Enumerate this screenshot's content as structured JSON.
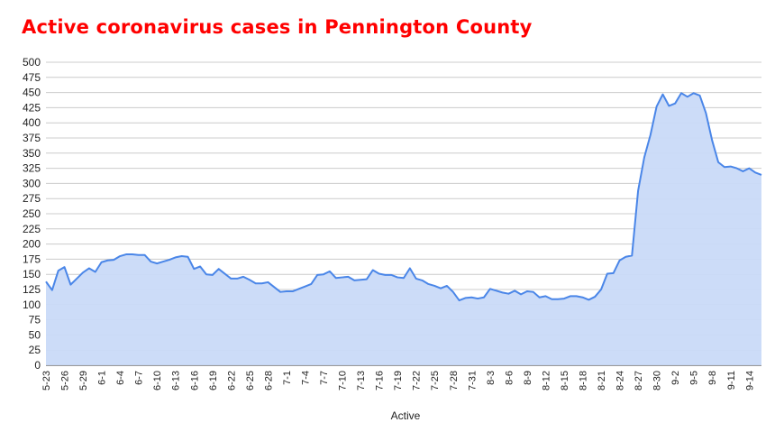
{
  "chart_data": {
    "type": "area",
    "title": "Active coronavirus cases in Pennington County",
    "xlabel": "Active",
    "ylabel": "",
    "ylim": [
      0,
      500
    ],
    "yticks": [
      0,
      25,
      50,
      75,
      100,
      125,
      150,
      175,
      200,
      225,
      250,
      275,
      300,
      325,
      350,
      375,
      400,
      425,
      450,
      475,
      500
    ],
    "grid": true,
    "legend": "none",
    "colors": {
      "title": "#ff0000",
      "line": "#4a86e8",
      "fill": "#c9daf8",
      "grid": "#cccccc"
    },
    "x": [
      "5-23",
      "5-24",
      "5-25",
      "5-26",
      "5-27",
      "5-28",
      "5-29",
      "5-30",
      "5-31",
      "6-1",
      "6-2",
      "6-3",
      "6-4",
      "6-5",
      "6-6",
      "6-7",
      "6-8",
      "6-9",
      "6-10",
      "6-11",
      "6-12",
      "6-13",
      "6-14",
      "6-15",
      "6-16",
      "6-17",
      "6-18",
      "6-19",
      "6-20",
      "6-21",
      "6-22",
      "6-23",
      "6-24",
      "6-25",
      "6-26",
      "6-27",
      "6-28",
      "6-29",
      "6-30",
      "7-1",
      "7-2",
      "7-3",
      "7-4",
      "7-5",
      "7-6",
      "7-7",
      "7-8",
      "7-9",
      "7-10",
      "7-11",
      "7-12",
      "7-13",
      "7-14",
      "7-15",
      "7-16",
      "7-17",
      "7-18",
      "7-19",
      "7-20",
      "7-21",
      "7-22",
      "7-23",
      "7-24",
      "7-25",
      "7-26",
      "7-27",
      "7-28",
      "7-29",
      "7-30",
      "7-31",
      "8-1",
      "8-2",
      "8-3",
      "8-4",
      "8-5",
      "8-6",
      "8-7",
      "8-8",
      "8-9",
      "8-10",
      "8-11",
      "8-12",
      "8-13",
      "8-14",
      "8-15",
      "8-16",
      "8-17",
      "8-18",
      "8-19",
      "8-20",
      "8-21",
      "8-22",
      "8-23",
      "8-24",
      "8-25",
      "8-26",
      "8-27",
      "8-28",
      "8-29",
      "8-30",
      "8-31",
      "9-1",
      "9-2",
      "9-3",
      "9-4",
      "9-5",
      "9-6",
      "9-7",
      "9-8",
      "9-9",
      "9-10",
      "9-11",
      "9-12",
      "9-13",
      "9-14",
      "9-15",
      "9-16"
    ],
    "xtick_labels": [
      "5-23",
      "5-26",
      "5-29",
      "6-1",
      "6-4",
      "6-7",
      "6-10",
      "6-13",
      "6-16",
      "6-19",
      "6-22",
      "6-25",
      "6-28",
      "7-1",
      "7-4",
      "7-7",
      "7-10",
      "7-13",
      "7-16",
      "7-19",
      "7-22",
      "7-25",
      "7-28",
      "7-31",
      "8-3",
      "8-6",
      "8-9",
      "8-12",
      "8-15",
      "8-18",
      "8-21",
      "8-24",
      "8-27",
      "8-30",
      "9-2",
      "9-5",
      "9-8",
      "9-11",
      "9-14"
    ],
    "series": [
      {
        "name": "Active",
        "values": [
          138,
          124,
          156,
          162,
          133,
          143,
          153,
          160,
          154,
          170,
          173,
          174,
          180,
          183,
          183,
          182,
          182,
          171,
          168,
          171,
          174,
          178,
          180,
          179,
          159,
          163,
          150,
          149,
          159,
          151,
          143,
          143,
          146,
          141,
          135,
          135,
          137,
          129,
          121,
          122,
          122,
          126,
          130,
          134,
          149,
          150,
          155,
          144,
          145,
          146,
          140,
          141,
          142,
          157,
          151,
          149,
          149,
          145,
          144,
          160,
          143,
          140,
          134,
          131,
          127,
          131,
          121,
          107,
          111,
          112,
          110,
          112,
          126,
          123,
          120,
          118,
          123,
          117,
          122,
          121,
          112,
          114,
          109,
          109,
          110,
          114,
          114,
          112,
          108,
          113,
          125,
          151,
          152,
          173,
          179,
          181,
          288,
          343,
          380,
          427,
          447,
          428,
          432,
          449,
          443,
          449,
          445,
          416,
          371,
          335,
          327,
          328,
          325,
          320,
          325,
          318,
          314
        ]
      }
    ]
  }
}
